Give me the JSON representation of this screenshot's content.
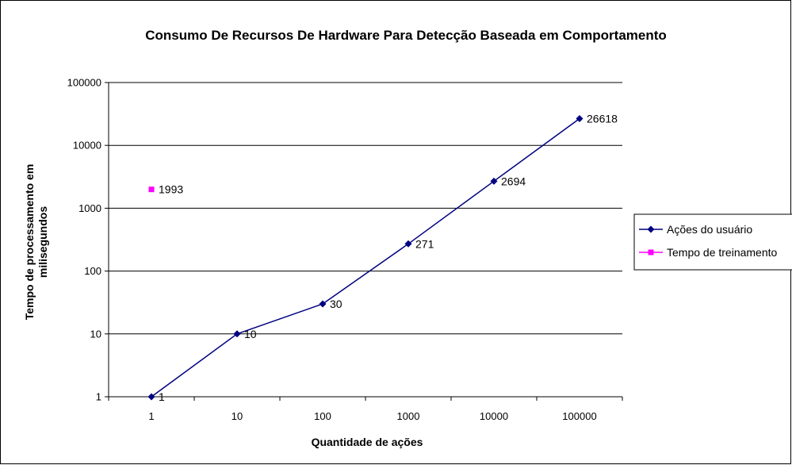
{
  "chart_data": {
    "type": "line",
    "title": "Consumo De Recursos De Hardware Para Detecção Baseada em Comportamento",
    "xlabel": "Quantidade de ações",
    "ylabel": [
      "Tempo de processamento em",
      "milisegundos"
    ],
    "x_scale": "log",
    "y_scale": "log",
    "x_ticks": [
      "1",
      "10",
      "100",
      "1000",
      "10000",
      "100000"
    ],
    "y_ticks": [
      "1",
      "10",
      "100",
      "1000",
      "10000",
      "100000"
    ],
    "xlim": [
      0.316,
      316228
    ],
    "ylim": [
      1,
      100000
    ],
    "grid": "horizontal",
    "legend_position": "right",
    "series": [
      {
        "name": "Ações do usuário",
        "color": "#000080",
        "marker": "diamond",
        "points": [
          {
            "x": 1,
            "y": 1,
            "label": "1"
          },
          {
            "x": 10,
            "y": 10,
            "label": "10"
          },
          {
            "x": 100,
            "y": 30,
            "label": "30"
          },
          {
            "x": 1000,
            "y": 271,
            "label": "271"
          },
          {
            "x": 10000,
            "y": 2694,
            "label": "2694"
          },
          {
            "x": 100000,
            "y": 26618,
            "label": "26618"
          }
        ]
      },
      {
        "name": "Tempo de treinamento",
        "color": "#FF00FF",
        "marker": "square",
        "points": [
          {
            "x": 1,
            "y": 1993,
            "label": "1993"
          }
        ]
      }
    ]
  }
}
